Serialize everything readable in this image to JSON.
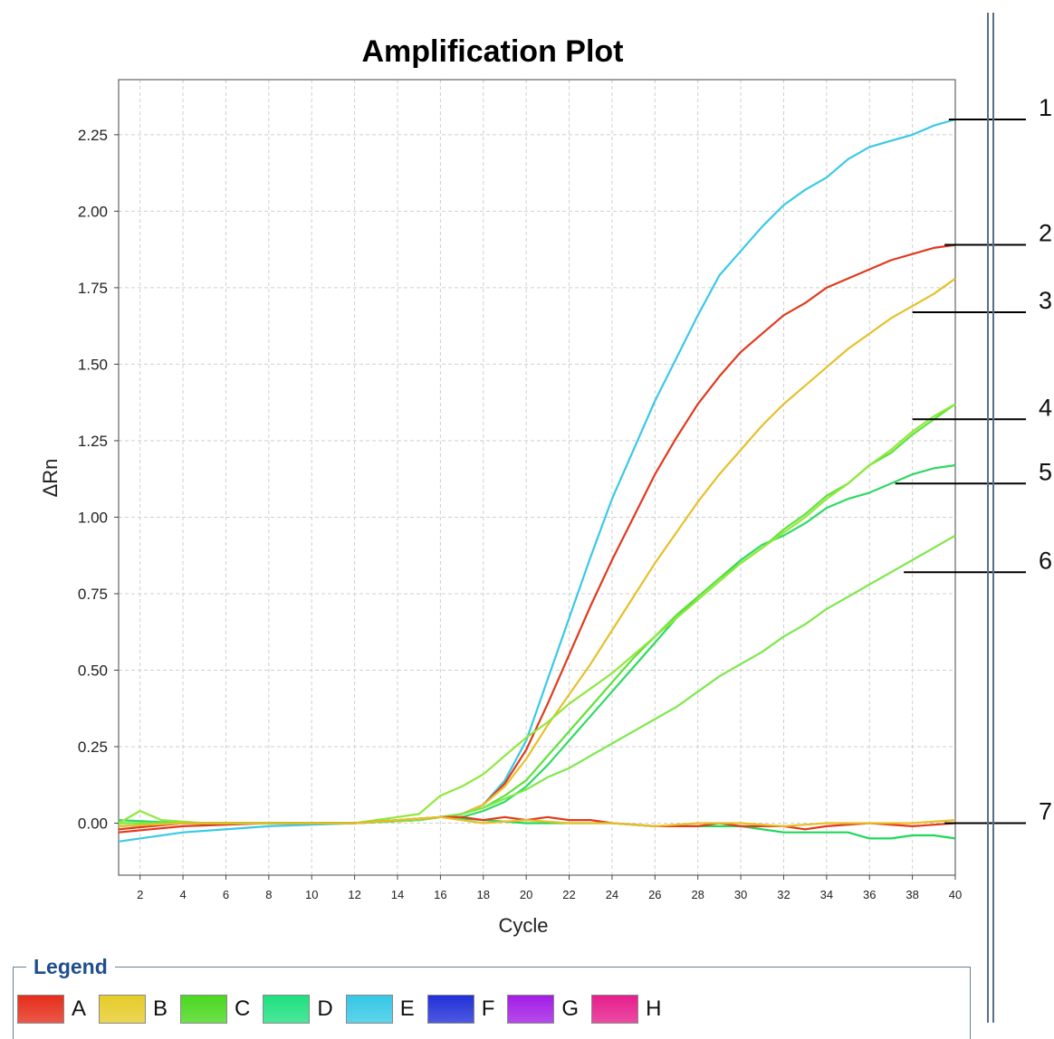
{
  "chart_data": {
    "type": "line",
    "title": "Amplification Plot",
    "xlabel": "Cycle",
    "ylabel": "ΔRn",
    "xlim": [
      1,
      40
    ],
    "ylim": [
      -0.17,
      2.43
    ],
    "xticks": [
      2,
      4,
      6,
      8,
      10,
      12,
      14,
      16,
      18,
      20,
      22,
      24,
      26,
      28,
      30,
      32,
      34,
      36,
      38,
      40
    ],
    "yticks": [
      0.0,
      0.25,
      0.5,
      0.75,
      1.0,
      1.25,
      1.5,
      1.75,
      2.0,
      2.25
    ],
    "ytick_labels": [
      "0.00",
      "0.25",
      "0.50",
      "0.75",
      "1.00",
      "1.25",
      "1.50",
      "1.75",
      "2.00",
      "2.25"
    ],
    "grid": true,
    "series": [
      {
        "color": "#39c9e6",
        "x": [
          1,
          4,
          8,
          12,
          15,
          16,
          17,
          18,
          19,
          20,
          21,
          22,
          23,
          24,
          25,
          26,
          27,
          28,
          29,
          30,
          31,
          32,
          33,
          34,
          35,
          36,
          37,
          38,
          39,
          40
        ],
        "values": [
          -0.06,
          -0.03,
          -0.01,
          0,
          0.01,
          0.02,
          0.03,
          0.06,
          0.14,
          0.27,
          0.47,
          0.67,
          0.87,
          1.06,
          1.22,
          1.38,
          1.52,
          1.66,
          1.79,
          1.87,
          1.95,
          2.02,
          2.07,
          2.11,
          2.17,
          2.21,
          2.23,
          2.25,
          2.28,
          2.3
        ]
      },
      {
        "color": "#e03a1e",
        "x": [
          1,
          4,
          8,
          12,
          15,
          16,
          17,
          18,
          19,
          20,
          21,
          22,
          23,
          24,
          25,
          26,
          27,
          28,
          29,
          30,
          31,
          32,
          33,
          34,
          35,
          36,
          37,
          38,
          39,
          40
        ],
        "values": [
          -0.03,
          -0.01,
          0,
          0,
          0.01,
          0.02,
          0.03,
          0.06,
          0.13,
          0.24,
          0.39,
          0.55,
          0.71,
          0.86,
          1.0,
          1.14,
          1.26,
          1.37,
          1.46,
          1.54,
          1.6,
          1.66,
          1.7,
          1.75,
          1.78,
          1.81,
          1.84,
          1.86,
          1.88,
          1.89
        ]
      },
      {
        "color": "#e6c02a",
        "x": [
          1,
          4,
          8,
          12,
          15,
          16,
          17,
          18,
          19,
          20,
          21,
          22,
          23,
          24,
          25,
          26,
          27,
          28,
          29,
          30,
          31,
          32,
          33,
          34,
          35,
          36,
          37,
          38,
          39,
          40
        ],
        "values": [
          -0.02,
          0,
          0,
          0,
          0.01,
          0.02,
          0.03,
          0.06,
          0.12,
          0.21,
          0.32,
          0.42,
          0.52,
          0.63,
          0.74,
          0.85,
          0.95,
          1.05,
          1.14,
          1.22,
          1.3,
          1.37,
          1.43,
          1.49,
          1.55,
          1.6,
          1.65,
          1.69,
          1.73,
          1.78
        ]
      },
      {
        "color": "#2fd964",
        "x": [
          1,
          4,
          8,
          12,
          15,
          16,
          17,
          18,
          19,
          20,
          21,
          22,
          23,
          24,
          25,
          26,
          27,
          28,
          29,
          30,
          31,
          32,
          33,
          34,
          35,
          36,
          37,
          38,
          39,
          40
        ],
        "values": [
          0.01,
          0,
          0,
          0,
          0.01,
          0.02,
          0.02,
          0.04,
          0.07,
          0.12,
          0.19,
          0.27,
          0.35,
          0.43,
          0.51,
          0.59,
          0.67,
          0.74,
          0.8,
          0.86,
          0.91,
          0.94,
          0.98,
          1.03,
          1.06,
          1.08,
          1.11,
          1.14,
          1.16,
          1.17
        ]
      },
      {
        "color": "#5ee23a",
        "x": [
          1,
          4,
          8,
          12,
          15,
          16,
          17,
          18,
          19,
          20,
          21,
          22,
          23,
          24,
          25,
          26,
          27,
          28,
          29,
          30,
          31,
          32,
          33,
          34,
          35,
          36,
          37,
          38,
          39,
          40
        ],
        "values": [
          0,
          0,
          0,
          0,
          0.01,
          0.02,
          0.03,
          0.05,
          0.09,
          0.14,
          0.22,
          0.3,
          0.38,
          0.46,
          0.54,
          0.61,
          0.68,
          0.74,
          0.8,
          0.85,
          0.9,
          0.96,
          1.01,
          1.07,
          1.11,
          1.17,
          1.21,
          1.27,
          1.32,
          1.37
        ]
      },
      {
        "color": "#7de84a",
        "x": [
          1,
          4,
          8,
          12,
          15,
          16,
          17,
          18,
          19,
          20,
          21,
          22,
          23,
          24,
          25,
          26,
          27,
          28,
          29,
          30,
          31,
          32,
          33,
          34,
          35,
          36,
          37,
          38,
          39,
          40
        ],
        "values": [
          0,
          0,
          0,
          0,
          0.01,
          0.02,
          0.03,
          0.05,
          0.08,
          0.11,
          0.15,
          0.18,
          0.22,
          0.26,
          0.3,
          0.34,
          0.38,
          0.43,
          0.48,
          0.52,
          0.56,
          0.61,
          0.65,
          0.7,
          0.74,
          0.78,
          0.82,
          0.86,
          0.9,
          0.94
        ]
      },
      {
        "color": "#8fe83c",
        "x": [
          1,
          2,
          3,
          5,
          8,
          12,
          14,
          15,
          16,
          17,
          18,
          19,
          20,
          21,
          22,
          23,
          24,
          25,
          26,
          27,
          28,
          29,
          30,
          31,
          32,
          33,
          34,
          35,
          36,
          37,
          38,
          39,
          40
        ],
        "values": [
          0,
          0.04,
          0.01,
          0,
          0,
          0,
          0.02,
          0.03,
          0.09,
          0.12,
          0.16,
          0.22,
          0.28,
          0.33,
          0.39,
          0.44,
          0.49,
          0.55,
          0.61,
          0.67,
          0.73,
          0.79,
          0.85,
          0.9,
          0.95,
          1.0,
          1.06,
          1.11,
          1.17,
          1.22,
          1.28,
          1.33,
          1.37
        ]
      },
      {
        "color": "#1ed95a",
        "x": [
          1,
          4,
          8,
          12,
          16,
          18,
          20,
          22,
          24,
          26,
          28,
          30,
          32,
          34,
          35,
          36,
          37,
          38,
          39,
          40
        ],
        "values": [
          -0.01,
          0,
          0,
          0,
          0.02,
          0.01,
          0,
          0,
          0,
          -0.01,
          -0.01,
          -0.01,
          -0.03,
          -0.03,
          -0.03,
          -0.05,
          -0.05,
          -0.04,
          -0.04,
          -0.05
        ]
      },
      {
        "color": "#e03a1e",
        "x": [
          1,
          4,
          8,
          12,
          16,
          17,
          18,
          19,
          20,
          21,
          22,
          23,
          24,
          26,
          28,
          29,
          30,
          32,
          33,
          34,
          36,
          38,
          40
        ],
        "values": [
          -0.02,
          0,
          0,
          0,
          0.02,
          0.02,
          0.01,
          0.02,
          0.01,
          0.02,
          0.01,
          0.01,
          0,
          -0.01,
          -0.01,
          0,
          -0.01,
          -0.01,
          -0.02,
          -0.01,
          0,
          -0.01,
          0
        ]
      },
      {
        "color": "#e6c02a",
        "x": [
          1,
          4,
          8,
          12,
          16,
          18,
          20,
          22,
          24,
          26,
          28,
          30,
          32,
          34,
          36,
          38,
          40
        ],
        "values": [
          -0.01,
          0,
          0,
          0,
          0.02,
          0,
          0.01,
          0,
          0,
          -0.01,
          0,
          0,
          -0.01,
          0,
          0,
          0,
          0.01
        ]
      }
    ],
    "callouts": [
      {
        "label": "1",
        "x": 39.7,
        "y": 2.3
      },
      {
        "label": "2",
        "x": 39.5,
        "y": 1.89
      },
      {
        "label": "3",
        "x": 38.0,
        "y": 1.67
      },
      {
        "label": "4",
        "x": 38.0,
        "y": 1.32
      },
      {
        "label": "5",
        "x": 37.2,
        "y": 1.11
      },
      {
        "label": "6",
        "x": 37.6,
        "y": 0.82
      },
      {
        "label": "7",
        "x": 39.5,
        "y": 0.0
      }
    ]
  },
  "legend": {
    "title": "Legend",
    "items": [
      {
        "label": "A",
        "color": "#e62e1b"
      },
      {
        "label": "B",
        "color": "#e6cc2a"
      },
      {
        "label": "C",
        "color": "#4ad81f"
      },
      {
        "label": "D",
        "color": "#1fe080"
      },
      {
        "label": "E",
        "color": "#35c8e6"
      },
      {
        "label": "F",
        "color": "#2130d8"
      },
      {
        "label": "G",
        "color": "#a31ee6"
      },
      {
        "label": "H",
        "color": "#e61e8c"
      }
    ]
  }
}
